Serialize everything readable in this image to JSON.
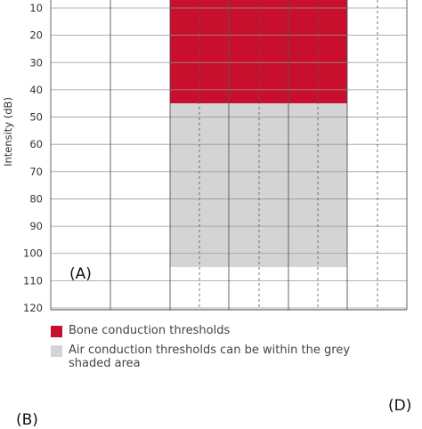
{
  "chart_data": {
    "type": "area",
    "ylabel": "Intensity (dB)",
    "y_ticks": [
      10,
      20,
      30,
      40,
      50,
      60,
      70,
      80,
      90,
      100,
      110,
      120
    ],
    "y_range": [
      7,
      120
    ],
    "y_inverted": true,
    "grid": true,
    "series": [
      {
        "name": "Bone conduction thresholds",
        "color": "#c8102e",
        "from": 7,
        "to": 45
      },
      {
        "name": "Air conduction thresholds can be within the grey shaded area",
        "color": "#d4d4d4",
        "from": 45,
        "to": 105
      }
    ],
    "panel_label": "(A)"
  },
  "legend": {
    "items": [
      {
        "text": "Bone conduction thresholds",
        "color": "#c8102e"
      },
      {
        "text": "Air conduction thresholds can be within the grey shaded area",
        "color": "#d4d4d4"
      }
    ]
  },
  "labels": {
    "bottom_left": "(B)",
    "bottom_right": "(D)"
  }
}
